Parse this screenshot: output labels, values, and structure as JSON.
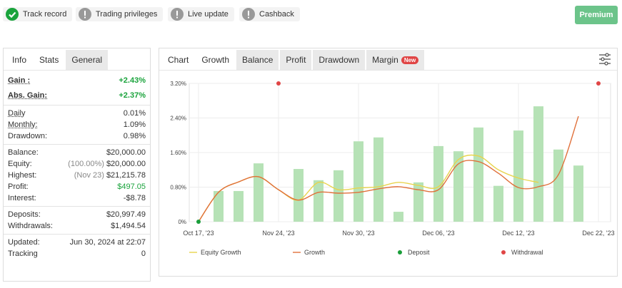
{
  "badges": [
    "Track record",
    "Trading privileges",
    "Live update",
    "Cashback"
  ],
  "premium_button": "Premium",
  "stats_tabs": [
    "Info",
    "Stats",
    "General"
  ],
  "stats": [
    [
      {
        "label": "Gain :",
        "value": "+2.43%",
        "emphasis": true,
        "value_color": "#1aa33c"
      },
      {
        "label": "Abs. Gain:",
        "value": "+2.37%",
        "emphasis": true,
        "value_color": "#1aa33c"
      }
    ],
    [
      {
        "label": "Daily",
        "value": "0.01%",
        "underline": true
      },
      {
        "label": "Monthly:",
        "value": "1.09%",
        "underline": true
      },
      {
        "label": "Drawdown:",
        "value": "0.98%"
      }
    ],
    [
      {
        "label": "Balance:",
        "value": "$20,000.00"
      },
      {
        "label": "Equity:",
        "note": "(100.00%)",
        "value": "$20,000.00"
      },
      {
        "label": "Highest:",
        "note": "(Nov 23)",
        "value": "$21,215.78"
      },
      {
        "label": "Profit:",
        "value": "$497.05",
        "value_color": "#1aa33c"
      },
      {
        "label": "Interest:",
        "value": "-$8.78"
      }
    ],
    [
      {
        "label": "Deposits:",
        "value": "$20,997.49"
      },
      {
        "label": "Withdrawals:",
        "value": "$1,494.54"
      }
    ],
    [
      {
        "label": "Updated:",
        "value": "Jun 30, 2024 at 22:07"
      },
      {
        "label": "Tracking",
        "value": "0"
      }
    ]
  ],
  "chart_tabs": [
    "Chart",
    "Growth",
    "Balance",
    "Profit",
    "Drawdown",
    "Margin"
  ],
  "new_badge": "New",
  "chart_data": {
    "type": "bar",
    "categories": [
      "Oct 17, '23",
      null,
      null,
      null,
      "Nov 24, '23",
      null,
      null,
      null,
      "Nov 30, '23",
      null,
      null,
      null,
      "Dec 06, '23",
      null,
      null,
      null,
      "Dec 12, '23",
      null,
      null,
      null,
      "Dec 22, '23"
    ],
    "ylim": [
      0,
      3.2
    ],
    "yticks": [
      {
        "value": 0,
        "label": "0%"
      },
      {
        "value": 0.8,
        "label": "0.80%"
      },
      {
        "value": 1.6,
        "label": "1.60%"
      },
      {
        "value": 2.4,
        "label": "2.40%"
      },
      {
        "value": 3.2,
        "label": "3.20%"
      }
    ],
    "grid": true,
    "series": [
      {
        "type": "bar",
        "color": "#b6e2b6",
        "values": [
          null,
          0.71,
          0.71,
          1.35,
          null,
          1.22,
          0.96,
          1.19,
          1.86,
          1.95,
          0.23,
          0.91,
          1.75,
          1.63,
          2.18,
          0.83,
          2.11,
          2.67,
          1.67,
          1.3,
          null
        ]
      },
      {
        "type": "line",
        "name": "Equity Growth",
        "color": "#e8d44d",
        "values": [
          0,
          0.68,
          0.92,
          1.04,
          0.74,
          0.5,
          0.91,
          0.74,
          0.78,
          0.81,
          0.91,
          0.84,
          0.81,
          1.44,
          1.52,
          1.2,
          1.01,
          0.91,
          null,
          null,
          null
        ]
      },
      {
        "type": "line",
        "name": "Growth",
        "color": "#e0703a",
        "values": [
          0,
          0.68,
          0.92,
          1.04,
          0.74,
          0.5,
          0.68,
          0.66,
          0.68,
          0.76,
          0.81,
          0.74,
          0.74,
          1.34,
          1.39,
          1.12,
          0.79,
          0.81,
          1.09,
          2.44,
          null
        ]
      },
      {
        "type": "scatter",
        "name": "Deposit",
        "color": "#1a9e3a",
        "values": [
          0,
          null,
          null,
          null,
          null,
          null,
          null,
          null,
          null,
          null,
          null,
          null,
          null,
          null,
          null,
          null,
          null,
          null,
          null,
          null,
          null
        ]
      },
      {
        "type": "scatter",
        "name": "Withdrawal",
        "color": "#e04545",
        "values": [
          null,
          null,
          null,
          null,
          3.2,
          null,
          null,
          null,
          null,
          null,
          null,
          null,
          null,
          null,
          null,
          null,
          null,
          null,
          null,
          null,
          3.2
        ]
      }
    ]
  }
}
